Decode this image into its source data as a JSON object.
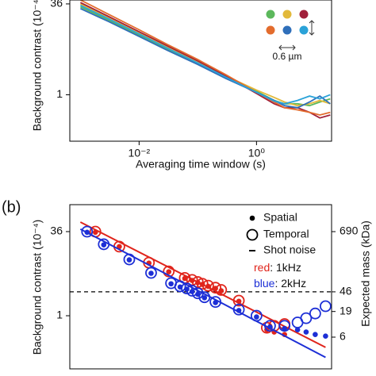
{
  "chart_data": [
    {
      "type": "line",
      "x_label": "Averaging time window (s)",
      "y_label": "Background contrast (10⁻⁴)",
      "xscale": "log",
      "yscale": "log",
      "xlim": [
        0.00066,
        19
      ],
      "ylim": [
        0.16,
        42
      ],
      "xticks": [
        {
          "value": 0.01,
          "label": "10⁻²"
        },
        {
          "value": 1,
          "label": "10⁰"
        }
      ],
      "yticks": [
        36,
        1
      ],
      "scale_bar": "0.6 µm",
      "x": [
        0.001,
        0.003,
        0.01,
        0.03,
        0.1,
        0.3,
        1,
        2,
        3,
        5,
        8,
        12,
        18
      ],
      "series": [
        {
          "color": "#5cb85c",
          "values": [
            32,
            19,
            10.5,
            6.0,
            3.4,
            2.0,
            1.15,
            0.8,
            0.7,
            0.7,
            0.65,
            0.75,
            0.85
          ]
        },
        {
          "color": "#e2b93b",
          "values": [
            36,
            21,
            11.5,
            6.6,
            3.7,
            2.1,
            1.2,
            0.9,
            0.75,
            0.65,
            0.7,
            0.8,
            0.7
          ]
        },
        {
          "color": "#a0203a",
          "values": [
            38,
            22,
            12,
            6.9,
            3.8,
            2.1,
            1.05,
            0.7,
            0.6,
            0.6,
            0.5,
            0.4,
            0.45
          ]
        },
        {
          "color": "#e36c2d",
          "values": [
            42,
            24,
            13,
            7.3,
            4.0,
            2.2,
            1.1,
            0.75,
            0.6,
            0.55,
            0.5,
            0.45,
            0.5
          ]
        },
        {
          "color": "#2f6fba",
          "values": [
            30,
            18,
            10,
            5.8,
            3.3,
            1.9,
            1.1,
            0.8,
            0.65,
            0.6,
            0.75,
            0.95,
            0.7
          ]
        },
        {
          "color": "#2aa2d8",
          "values": [
            34,
            20,
            11,
            6.3,
            3.5,
            2.0,
            1.1,
            0.78,
            0.7,
            0.8,
            0.95,
            0.85,
            1.0
          ]
        }
      ]
    },
    {
      "type": "scatter",
      "panel_label": "(b)",
      "y_label": "Background contrast (10⁻⁴)",
      "y2_label": "Expected mass (kDa)",
      "xscale": "log",
      "yscale": "log",
      "xlim": [
        0.00066,
        19
      ],
      "ylim": [
        0.104,
        113.5
      ],
      "y2lim": [
        1.44,
        2320
      ],
      "yticks": [
        36,
        1
      ],
      "y2ticks": [
        690,
        46,
        19,
        6
      ],
      "legend": {
        "spatial": "Spatial",
        "temporal": "Temporal",
        "shot_noise": "Shot noise"
      },
      "shot_noise": {
        "axis": "y2",
        "value": 46
      },
      "series": [
        {
          "name": "red: 1kHz",
          "color": "#e0241b",
          "x": [
            0.0018,
            0.0046,
            0.0147,
            0.032,
            0.06,
            0.08,
            0.1,
            0.12,
            0.15,
            0.2,
            0.25,
            0.5,
            1.5,
            2,
            3
          ],
          "temporal": [
            36,
            19,
            9.6,
            6.6,
            5,
            4.6,
            4.2,
            3.9,
            3.6,
            3.3,
            3.0,
            1.9,
            0.6,
            0.65,
            0.7
          ],
          "spatial": [
            35,
            19,
            9.4,
            6.5,
            4.9,
            4.5,
            4.1,
            3.8,
            3.5,
            3.2,
            2.9,
            1.85,
            0.55,
            0.5,
            0.45
          ],
          "fit_x": [
            0.001,
            15
          ],
          "fit": [
            54,
            0.26
          ]
        },
        {
          "name": "blue: 2kHz",
          "color": "#1d2fd6",
          "x": [
            0.0013,
            0.0025,
            0.0068,
            0.016,
            0.035,
            0.05,
            0.065,
            0.08,
            0.1,
            0.13,
            0.2,
            0.5,
            1,
            1.7,
            3,
            5,
            7,
            10,
            15
          ],
          "temporal": [
            36,
            21,
            11,
            6.2,
            4.0,
            3.5,
            3.2,
            2.9,
            2.6,
            2.2,
            1.8,
            1.3,
            1.0,
            0.65,
            0.65,
            0.75,
            0.9,
            1.1,
            1.5
          ],
          "spatial": [
            35,
            20.5,
            10.8,
            6.1,
            3.9,
            3.4,
            3.1,
            2.8,
            2.5,
            2.15,
            1.75,
            1.25,
            0.95,
            0.62,
            0.58,
            0.55,
            0.5,
            0.45,
            0.42
          ],
          "fit_x": [
            0.001,
            15
          ],
          "fit": [
            40,
            0.17
          ]
        }
      ]
    }
  ]
}
